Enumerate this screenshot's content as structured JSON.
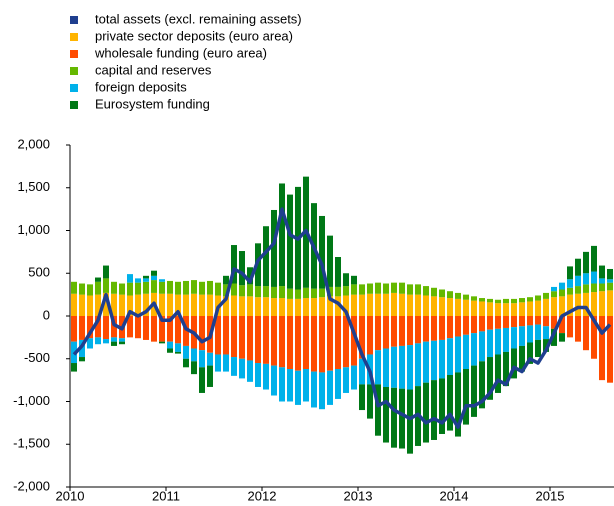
{
  "chart_data": {
    "type": "bar",
    "categories": [
      "2010",
      null,
      null,
      null,
      null,
      null,
      null,
      null,
      null,
      null,
      null,
      null,
      "2011",
      null,
      null,
      null,
      null,
      null,
      null,
      null,
      null,
      null,
      null,
      null,
      "2012",
      null,
      null,
      null,
      null,
      null,
      null,
      null,
      null,
      null,
      null,
      null,
      "2013",
      null,
      null,
      null,
      null,
      null,
      null,
      null,
      null,
      null,
      null,
      null,
      "2014",
      null,
      null,
      null,
      null,
      null,
      null,
      null,
      null,
      null,
      null,
      null,
      "2015",
      null,
      null,
      null,
      null,
      null,
      null,
      null
    ],
    "series": [
      {
        "name": "total assets (excl. remaining assets)",
        "color": "#1f3f8f",
        "type": "line",
        "values": [
          -450,
          -350,
          -200,
          -50,
          250,
          -100,
          -150,
          50,
          0,
          50,
          150,
          -50,
          -50,
          50,
          -150,
          -200,
          -300,
          -250,
          100,
          200,
          550,
          500,
          400,
          650,
          750,
          850,
          1250,
          950,
          900,
          1000,
          800,
          600,
          200,
          150,
          50,
          -200,
          -450,
          -650,
          -1050,
          -1000,
          -1100,
          -1150,
          -1200,
          -1150,
          -1250,
          -1200,
          -1250,
          -1150,
          -1300,
          -1050,
          -1050,
          -1000,
          -900,
          -750,
          -800,
          -600,
          -650,
          -500,
          -550,
          -400,
          -200,
          0,
          50,
          100,
          100,
          -50,
          -200,
          -100
        ]
      },
      {
        "name": "private sector deposits (euro area)",
        "color": "#ffb400",
        "values": [
          260,
          250,
          240,
          250,
          270,
          260,
          250,
          240,
          250,
          260,
          270,
          260,
          260,
          250,
          250,
          260,
          250,
          250,
          240,
          230,
          240,
          230,
          230,
          220,
          220,
          210,
          210,
          200,
          200,
          210,
          210,
          220,
          230,
          230,
          240,
          250,
          250,
          260,
          260,
          260,
          270,
          260,
          250,
          250,
          240,
          230,
          220,
          210,
          200,
          190,
          180,
          170,
          160,
          150,
          150,
          150,
          160,
          170,
          180,
          200,
          220,
          230,
          250,
          260,
          270,
          280,
          290,
          300
        ]
      },
      {
        "name": "wholesale funding (euro area)",
        "color": "#ff4b00",
        "values": [
          -300,
          -280,
          -260,
          -250,
          -270,
          -250,
          -260,
          -250,
          -260,
          -280,
          -300,
          -300,
          -300,
          -320,
          -350,
          -380,
          -400,
          -430,
          -450,
          -450,
          -480,
          -500,
          -520,
          -550,
          -560,
          -580,
          -600,
          -620,
          -640,
          -620,
          -650,
          -660,
          -640,
          -620,
          -600,
          -580,
          -500,
          -450,
          -400,
          -380,
          -360,
          -350,
          -340,
          -320,
          -300,
          -290,
          -280,
          -260,
          -240,
          -220,
          -200,
          -180,
          -160,
          -150,
          -140,
          -130,
          -120,
          -110,
          -100,
          -120,
          -150,
          -200,
          -250,
          -300,
          -400,
          -500,
          -750,
          -780
        ]
      },
      {
        "name": "capital and reserves",
        "color": "#65b800",
        "values": [
          140,
          130,
          130,
          150,
          170,
          140,
          130,
          150,
          140,
          140,
          150,
          140,
          150,
          150,
          160,
          160,
          150,
          160,
          150,
          140,
          140,
          130,
          140,
          130,
          130,
          130,
          140,
          120,
          110,
          120,
          110,
          100,
          110,
          110,
          110,
          120,
          120,
          120,
          130,
          120,
          120,
          130,
          120,
          120,
          110,
          100,
          90,
          80,
          70,
          60,
          50,
          40,
          40,
          40,
          50,
          50,
          50,
          50,
          60,
          70,
          70,
          80,
          80,
          90,
          100,
          100,
          90,
          90
        ]
      },
      {
        "name": "foreign deposits",
        "color": "#00b1ea",
        "values": [
          -250,
          -200,
          -120,
          -80,
          -50,
          -50,
          -40,
          100,
          50,
          40,
          50,
          30,
          -80,
          -100,
          -150,
          -150,
          -200,
          -150,
          -200,
          -200,
          -220,
          -230,
          -250,
          -280,
          -300,
          -350,
          -400,
          -380,
          -400,
          -380,
          -420,
          -430,
          -400,
          -350,
          -300,
          -280,
          -300,
          -350,
          -400,
          -450,
          -480,
          -500,
          -520,
          -500,
          -480,
          -460,
          -450,
          -430,
          -420,
          -400,
          -380,
          -350,
          -320,
          -300,
          -280,
          -250,
          -230,
          -200,
          -180,
          -150,
          50,
          80,
          100,
          120,
          130,
          140,
          60,
          40
        ]
      },
      {
        "name": "Eurosystem funding",
        "color": "#007816",
        "values": [
          -100,
          -50,
          0,
          50,
          150,
          -50,
          -30,
          0,
          0,
          30,
          60,
          -20,
          -50,
          -20,
          -100,
          -150,
          -300,
          -250,
          0,
          100,
          450,
          400,
          200,
          500,
          700,
          900,
          1200,
          1100,
          1200,
          1300,
          1000,
          850,
          600,
          350,
          150,
          100,
          -300,
          -400,
          -600,
          -650,
          -700,
          -700,
          -750,
          -700,
          -700,
          -700,
          -650,
          -650,
          -750,
          -650,
          -600,
          -550,
          -500,
          -450,
          -400,
          -350,
          -300,
          -250,
          -200,
          -150,
          -200,
          -100,
          150,
          200,
          250,
          300,
          150,
          120
        ]
      }
    ],
    "ylim": [
      -2000,
      2000
    ],
    "yticks": [
      {
        "value": -2000,
        "label": "-2,000"
      },
      {
        "value": -1500,
        "label": "-1,500"
      },
      {
        "value": -1000,
        "label": "-1,000"
      },
      -500,
      0,
      500,
      {
        "value": 1000,
        "label": "1,000"
      },
      {
        "value": 1500,
        "label": "1,500"
      },
      {
        "value": 2000,
        "label": "2,000"
      }
    ],
    "grid": false,
    "legend": "top-left"
  }
}
